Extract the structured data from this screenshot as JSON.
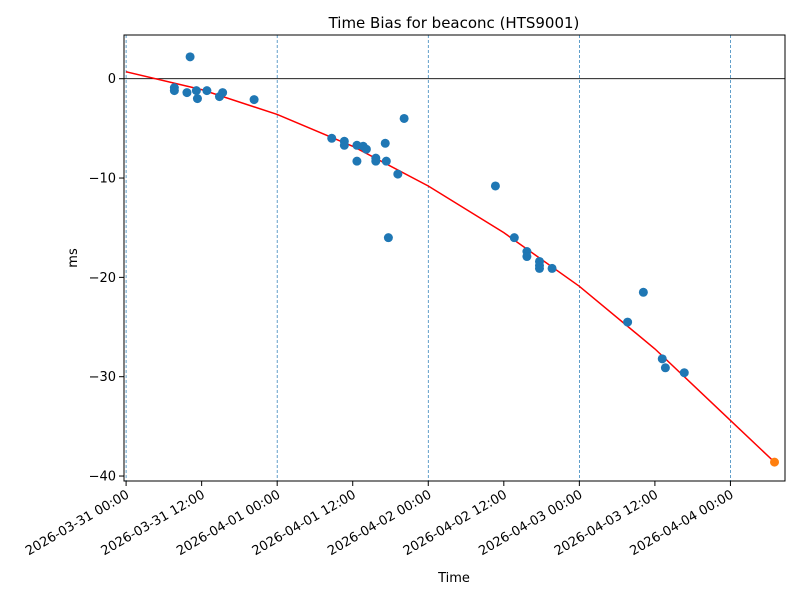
{
  "chart_data": {
    "type": "scatter",
    "title": "Time Bias for beaconc (HTS9001)",
    "xlabel": "Time",
    "ylabel": "ms",
    "x_range": [
      "2026-03-30T23:40",
      "2026-04-04T08:40"
    ],
    "ylim": [
      -40.5,
      4.4
    ],
    "x_ticks": [
      {
        "t": "2026-03-31T00:00",
        "label": "2026-03-31 00:00"
      },
      {
        "t": "2026-03-31T12:00",
        "label": "2026-03-31 12:00"
      },
      {
        "t": "2026-04-01T00:00",
        "label": "2026-04-01 00:00"
      },
      {
        "t": "2026-04-01T12:00",
        "label": "2026-04-01 12:00"
      },
      {
        "t": "2026-04-02T00:00",
        "label": "2026-04-02 00:00"
      },
      {
        "t": "2026-04-02T12:00",
        "label": "2026-04-02 12:00"
      },
      {
        "t": "2026-04-03T00:00",
        "label": "2026-04-03 00:00"
      },
      {
        "t": "2026-04-03T12:00",
        "label": "2026-04-03 12:00"
      },
      {
        "t": "2026-04-04T00:00",
        "label": "2026-04-04 00:00"
      }
    ],
    "y_ticks": [
      0,
      -10,
      -20,
      -30,
      -40
    ],
    "y_tick_labels": [
      "0",
      "−10",
      "−20",
      "−30",
      "−40"
    ],
    "day_lines": [
      "2026-03-31T00:00",
      "2026-04-01T00:00",
      "2026-04-02T00:00",
      "2026-04-03T00:00",
      "2026-04-04T00:00"
    ],
    "zero_line": 0,
    "grid": false,
    "series": [
      {
        "color": "#1f77b4",
        "points": [
          {
            "x": "2026-03-31T07:40",
            "y": -0.9
          },
          {
            "x": "2026-03-31T07:40",
            "y": -1.2
          },
          {
            "x": "2026-03-31T09:40",
            "y": -1.4
          },
          {
            "x": "2026-03-31T10:10",
            "y": 2.2
          },
          {
            "x": "2026-03-31T11:10",
            "y": -1.2
          },
          {
            "x": "2026-03-31T11:20",
            "y": -2.0
          },
          {
            "x": "2026-03-31T12:50",
            "y": -1.2
          },
          {
            "x": "2026-03-31T14:50",
            "y": -1.8
          },
          {
            "x": "2026-03-31T15:20",
            "y": -1.4
          },
          {
            "x": "2026-03-31T20:20",
            "y": -2.1
          },
          {
            "x": "2026-04-01T08:40",
            "y": -6.0
          },
          {
            "x": "2026-04-01T10:40",
            "y": -6.3
          },
          {
            "x": "2026-04-01T10:40",
            "y": -6.7
          },
          {
            "x": "2026-04-01T12:40",
            "y": -6.7
          },
          {
            "x": "2026-04-01T12:40",
            "y": -8.3
          },
          {
            "x": "2026-04-01T13:40",
            "y": -6.8
          },
          {
            "x": "2026-04-01T14:10",
            "y": -7.1
          },
          {
            "x": "2026-04-01T15:40",
            "y": -8.0
          },
          {
            "x": "2026-04-01T15:40",
            "y": -8.3
          },
          {
            "x": "2026-04-01T17:10",
            "y": -6.5
          },
          {
            "x": "2026-04-01T17:20",
            "y": -8.3
          },
          {
            "x": "2026-04-01T17:40",
            "y": -16.0
          },
          {
            "x": "2026-04-01T19:10",
            "y": -9.6
          },
          {
            "x": "2026-04-01T20:10",
            "y": -4.0
          },
          {
            "x": "2026-04-02T10:40",
            "y": -10.8
          },
          {
            "x": "2026-04-02T13:40",
            "y": -16.0
          },
          {
            "x": "2026-04-02T15:40",
            "y": -17.4
          },
          {
            "x": "2026-04-02T15:40",
            "y": -17.9
          },
          {
            "x": "2026-04-02T17:40",
            "y": -18.4
          },
          {
            "x": "2026-04-02T17:40",
            "y": -18.8
          },
          {
            "x": "2026-04-02T17:40",
            "y": -19.1
          },
          {
            "x": "2026-04-02T19:40",
            "y": -19.1
          },
          {
            "x": "2026-04-03T07:40",
            "y": -24.5
          },
          {
            "x": "2026-04-03T10:10",
            "y": -21.5
          },
          {
            "x": "2026-04-03T13:10",
            "y": -28.2
          },
          {
            "x": "2026-04-03T13:40",
            "y": -29.1
          },
          {
            "x": "2026-04-03T16:40",
            "y": -29.6
          }
        ]
      },
      {
        "color": "#ff7f0e",
        "points": [
          {
            "x": "2026-04-04T07:00",
            "y": -38.6
          }
        ]
      }
    ],
    "fit_line": {
      "color": "#ff0000",
      "points": [
        {
          "x": "2026-03-31T00:00",
          "y": 0.7
        },
        {
          "x": "2026-03-31T12:00",
          "y": -1.1
        },
        {
          "x": "2026-04-01T00:00",
          "y": -3.6
        },
        {
          "x": "2026-04-01T12:00",
          "y": -6.8
        },
        {
          "x": "2026-04-02T00:00",
          "y": -10.8
        },
        {
          "x": "2026-04-02T12:00",
          "y": -15.5
        },
        {
          "x": "2026-04-03T00:00",
          "y": -20.9
        },
        {
          "x": "2026-04-03T12:00",
          "y": -27.2
        },
        {
          "x": "2026-04-04T00:00",
          "y": -34.4
        },
        {
          "x": "2026-04-04T07:00",
          "y": -38.6
        }
      ]
    }
  }
}
